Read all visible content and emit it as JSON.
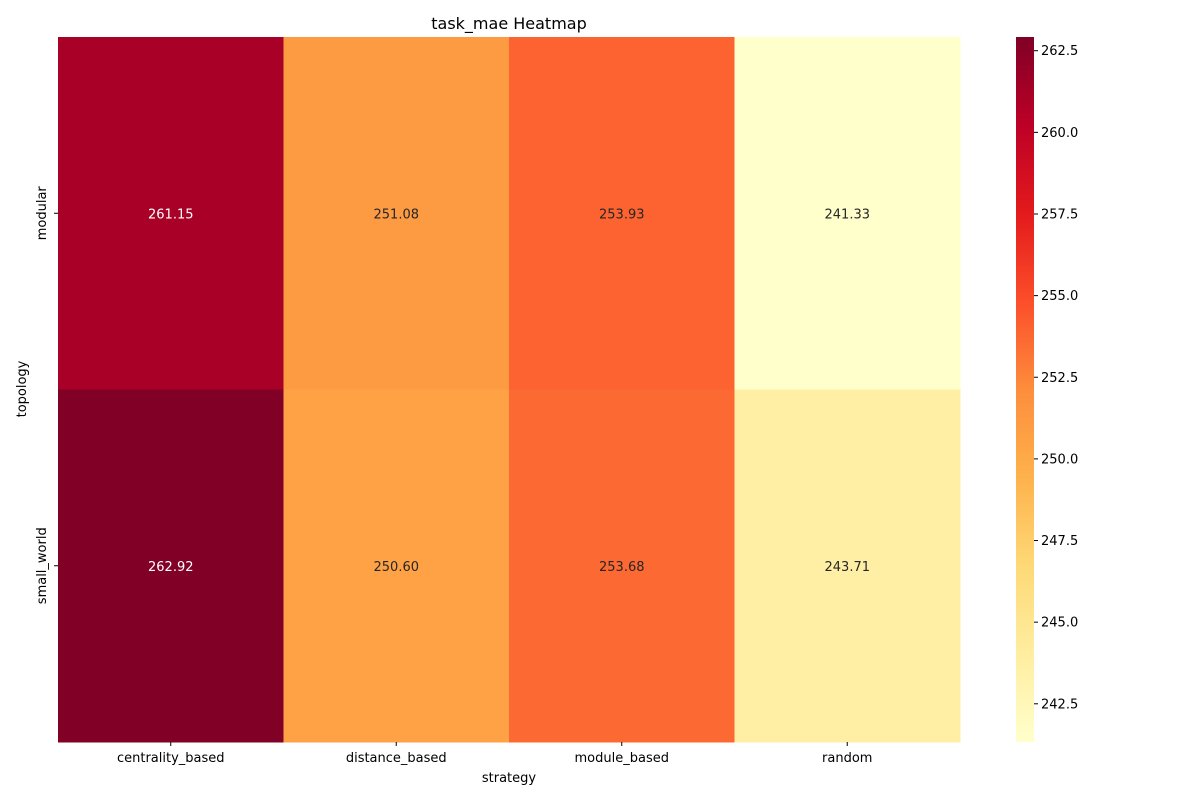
{
  "chart_data": {
    "type": "heatmap",
    "title": "task_mae Heatmap",
    "xlabel": "strategy",
    "ylabel": "topology",
    "x_categories": [
      "centrality_based",
      "distance_based",
      "module_based",
      "random"
    ],
    "y_categories": [
      "modular",
      "small_world"
    ],
    "values": [
      [
        261.15,
        251.08,
        253.93,
        241.33
      ],
      [
        262.92,
        250.6,
        253.68,
        243.71
      ]
    ],
    "cell_labels": [
      [
        "261.15",
        "251.08",
        "253.93",
        "241.33"
      ],
      [
        "262.92",
        "250.60",
        "253.68",
        "243.71"
      ]
    ],
    "colormap": "YlOrRd",
    "colormap_stops": [
      "#ffffcc",
      "#ffeda0",
      "#fed976",
      "#feb24c",
      "#fd8d3c",
      "#fc4e2a",
      "#e31a1c",
      "#bd0026",
      "#800026"
    ],
    "vmin": 241.33,
    "vmax": 262.92,
    "colorbar_ticks": [
      242.5,
      245.0,
      247.5,
      250.0,
      252.5,
      255.0,
      257.5,
      260.0,
      262.5
    ],
    "colorbar_tick_labels": [
      "242.5",
      "245.0",
      "247.5",
      "250.0",
      "252.5",
      "255.0",
      "257.5",
      "260.0",
      "262.5"
    ]
  }
}
